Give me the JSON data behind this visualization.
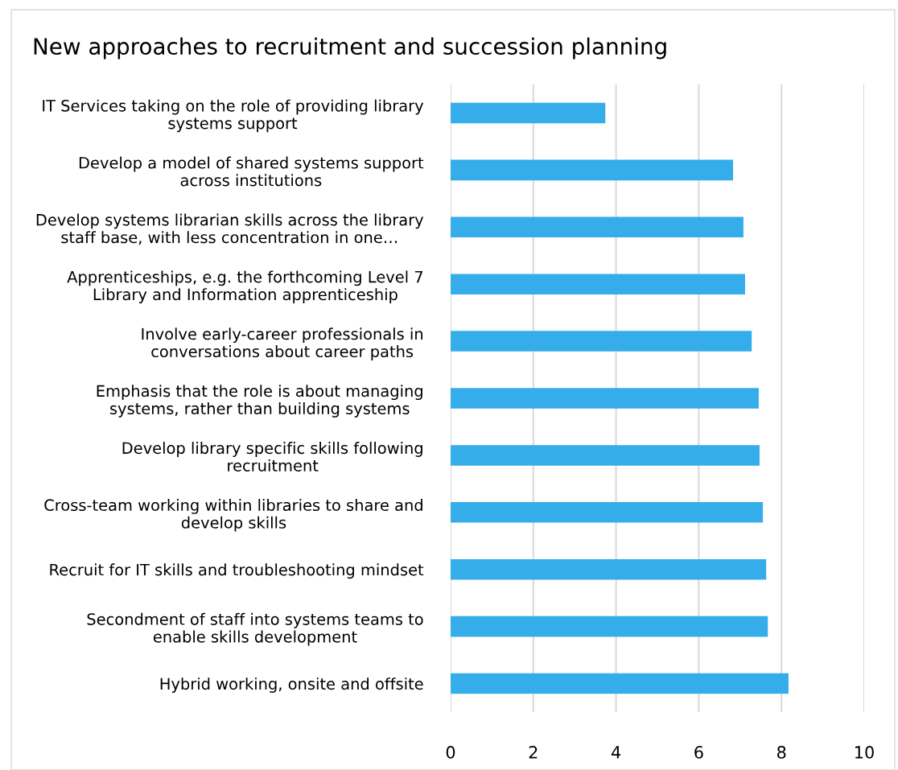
{
  "chart_data": {
    "type": "bar",
    "orientation": "horizontal",
    "title": "New approaches to recruitment and succession planning",
    "categories": [
      "IT Services taking on the role of providing library\nsystems support",
      "Develop a model of shared systems support\nacross institutions",
      "Develop systems librarian skills across the library\nstaff base, with less concentration in one…",
      "Apprenticeships, e.g. the forthcoming Level 7\nLibrary and Information apprenticeship",
      "Involve early-career professionals in\nconversations about career paths",
      "Emphasis that the role is about managing\nsystems, rather than building systems",
      "Develop library specific skills following\nrecruitment",
      "Cross-team working within libraries to share and\ndevelop skills",
      "Recruit for IT skills and troubleshooting mindset",
      "Secondment of staff into systems teams to\nenable skills development",
      "Hybrid working, onsite and offsite"
    ],
    "values": [
      3.74,
      6.83,
      7.08,
      7.12,
      7.28,
      7.45,
      7.47,
      7.55,
      7.63,
      7.67,
      8.17
    ],
    "color": "#35adeb",
    "xlim": [
      0,
      10
    ],
    "xticks": [
      0,
      2,
      4,
      6,
      8,
      10
    ],
    "grid": "x",
    "legend": false
  }
}
